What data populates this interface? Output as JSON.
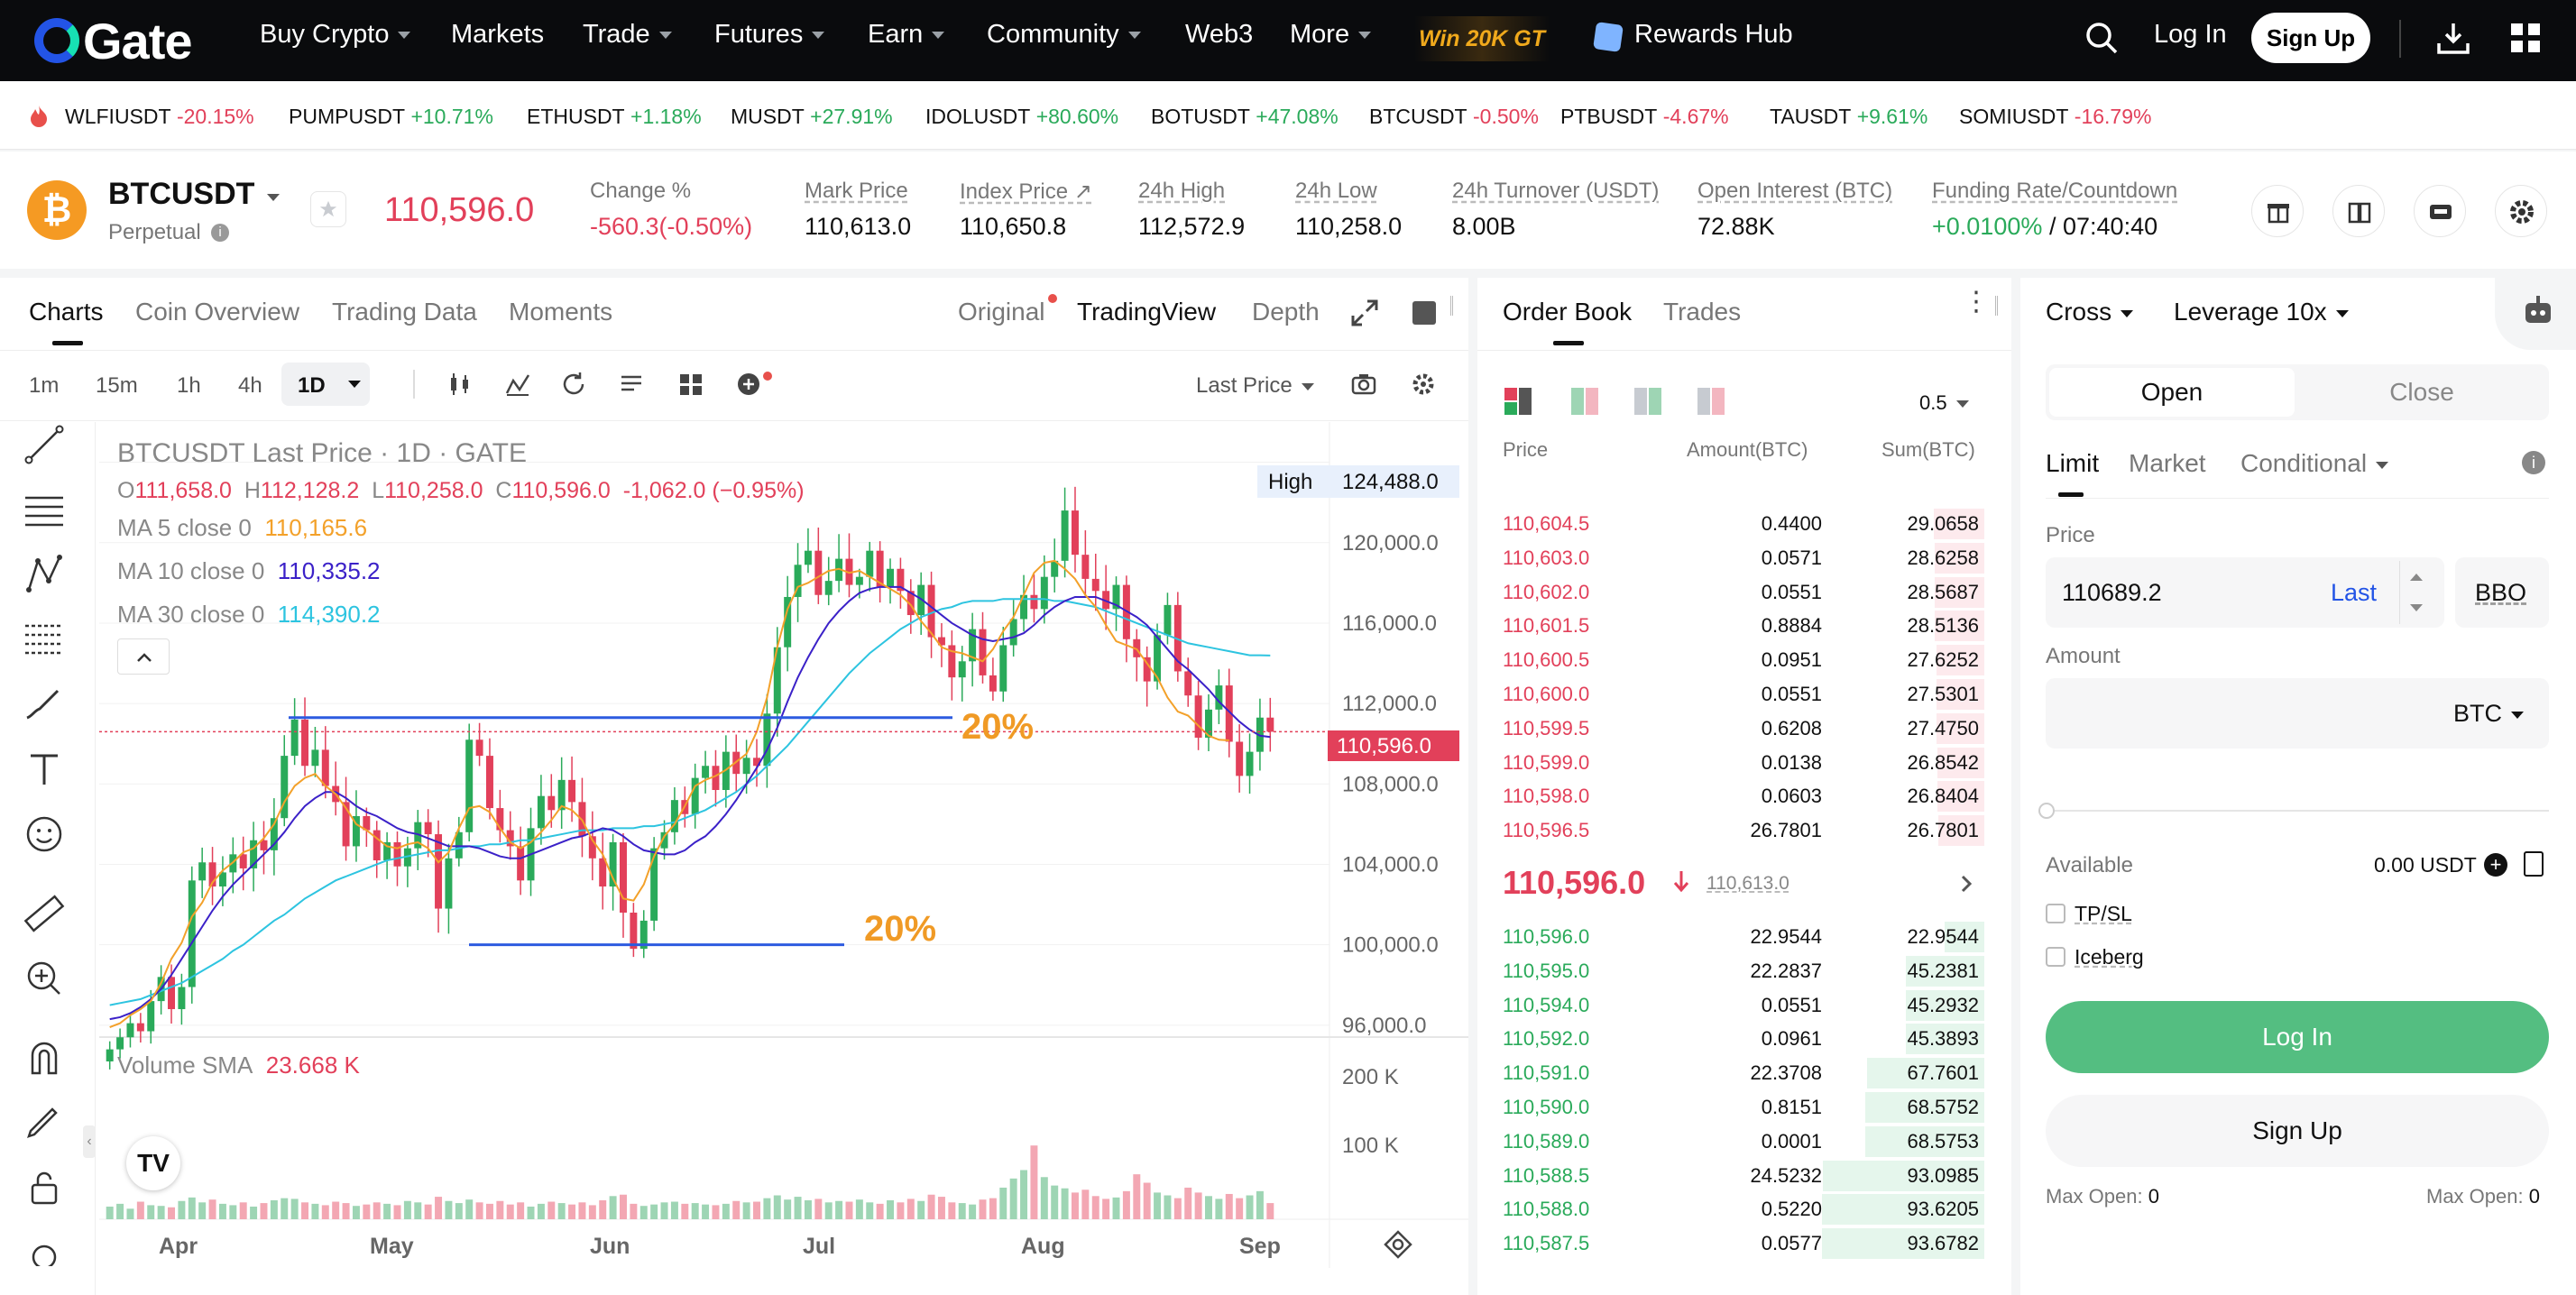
{
  "nav": {
    "logo": "Gate",
    "items": [
      {
        "label": "Buy Crypto",
        "dropdown": true
      },
      {
        "label": "Markets",
        "dropdown": false
      },
      {
        "label": "Trade",
        "dropdown": true
      },
      {
        "label": "Futures",
        "dropdown": true
      },
      {
        "label": "Earn",
        "dropdown": true
      },
      {
        "label": "Community",
        "dropdown": true
      },
      {
        "label": "Web3",
        "dropdown": false
      },
      {
        "label": "More",
        "dropdown": true
      }
    ],
    "promo_label": "Win 20K GT",
    "rewards_label": "Rewards Hub",
    "login_label": "Log In",
    "signup_label": "Sign Up",
    "icons": [
      "search-icon",
      "download-icon",
      "apps-grid-icon"
    ]
  },
  "ticker": [
    {
      "symbol": "WLFIUSDT",
      "change": "-20.15%",
      "dir": "neg"
    },
    {
      "symbol": "PUMPUSDT",
      "change": "+10.71%",
      "dir": "pos"
    },
    {
      "symbol": "ETHUSDT",
      "change": "+1.18%",
      "dir": "pos"
    },
    {
      "symbol": "MUSDT",
      "change": "+27.91%",
      "dir": "pos"
    },
    {
      "symbol": "IDOLUSDT",
      "change": "+80.60%",
      "dir": "pos"
    },
    {
      "symbol": "BOTUSDT",
      "change": "+47.08%",
      "dir": "pos"
    },
    {
      "symbol": "BTCUSDT",
      "change": "-0.50%",
      "dir": "neg"
    },
    {
      "symbol": "PTBUSDT",
      "change": "-4.67%",
      "dir": "neg"
    },
    {
      "symbol": "TAUSDT",
      "change": "+9.61%",
      "dir": "pos"
    },
    {
      "symbol": "SOMIUSDT",
      "change": "-16.79%",
      "dir": "neg"
    }
  ],
  "market": {
    "symbol": "BTCUSDT",
    "type": "Perpetual",
    "last_price": "110,596.0",
    "stats": [
      {
        "label": "Change %",
        "value": "-560.3(-0.50%)",
        "color": "#e2405a"
      },
      {
        "label": "Mark Price",
        "value": "110,613.0",
        "color": "#111111"
      },
      {
        "label": "Index Price ↗",
        "value": "110,650.8",
        "color": "#111111"
      },
      {
        "label": "24h High",
        "value": "112,572.9",
        "color": "#111111"
      },
      {
        "label": "24h Low",
        "value": "110,258.0",
        "color": "#111111"
      },
      {
        "label": "24h Turnover (USDT)",
        "value": "8.00B",
        "color": "#111111"
      },
      {
        "label": "Open Interest (BTC)",
        "value": "72.88K",
        "color": "#111111"
      }
    ],
    "funding_label": "Funding Rate/Countdown",
    "funding_rate": "+0.0100%",
    "countdown": "/ 07:40:40"
  },
  "chart_tabs": {
    "tabs": [
      "Charts",
      "Coin Overview",
      "Trading Data",
      "Moments"
    ],
    "views": [
      "Original",
      "TradingView",
      "Depth"
    ],
    "timeframes": [
      "1m",
      "15m",
      "1h",
      "4h",
      "1D"
    ],
    "price_source": "Last Price"
  },
  "chart_legend": {
    "title": "BTCUSDT Last Price · 1D · GATE",
    "ohlc": {
      "o": "111,658.0",
      "h": "112,128.2",
      "l": "110,258.0",
      "c": "110,596.0",
      "chg": "-1,062.0 (−0.95%)"
    },
    "ma5_label": "MA 5 close 0",
    "ma5_value": "110,165.6",
    "ma10_label": "MA 10 close 0",
    "ma10_value": "110,335.2",
    "ma30_label": "MA 30 close 0",
    "ma30_value": "114,390.2",
    "high_label": "High",
    "high_value": "124,488.0",
    "current_label": "110,596.0",
    "annot_top": "20%",
    "annot_bottom": "20%",
    "vol_label": "Volume SMA",
    "vol_value": "23.668 K"
  },
  "chart_data": {
    "type": "candlestick",
    "y_ticks": [
      "124,000.0",
      "120,000.0",
      "116,000.0",
      "112,000.0",
      "108,000.0",
      "104,000.0",
      "100,000.0",
      "96,000.0"
    ],
    "x_ticks": [
      "Apr",
      "May",
      "Jun",
      "Jul",
      "Aug",
      "Sep"
    ],
    "ylim": [
      95500,
      126000
    ],
    "vol_ticks": [
      "200 K",
      "100 K"
    ],
    "closes": [
      94800,
      95400,
      96100,
      95700,
      97200,
      98400,
      96800,
      97900,
      103200,
      104100,
      102900,
      103600,
      104500,
      103800,
      105200,
      104700,
      106300,
      109400,
      111200,
      108900,
      109700,
      107900,
      107100,
      104900,
      106400,
      105700,
      104200,
      105100,
      103900,
      104800,
      106100,
      105500,
      101800,
      104300,
      105600,
      110200,
      109400,
      106800,
      105700,
      104900,
      103200,
      105800,
      107400,
      106700,
      108200,
      107100,
      105400,
      104300,
      102900,
      105100,
      101600,
      99800,
      101200,
      104800,
      105600,
      107200,
      106500,
      108300,
      108900,
      107700,
      109600,
      108500,
      109300,
      108900,
      111500,
      114800,
      117300,
      118900,
      119600,
      117400,
      118100,
      119200,
      117900,
      118300,
      119600,
      117800,
      118700,
      117600,
      116400,
      117900,
      115300,
      114900,
      113300,
      114100,
      115700,
      113400,
      112600,
      114900,
      116200,
      117400,
      116700,
      118300,
      119100,
      121600,
      119400,
      118200,
      117600,
      116700,
      117900,
      115200,
      114300,
      113100,
      115400,
      116900,
      113600,
      112400,
      110300,
      111700,
      112900,
      110100,
      108400,
      109600,
      111300,
      110596
    ],
    "ma5": [
      95900,
      96100,
      96500,
      96800,
      97200,
      98100,
      99300,
      100100,
      101400,
      102100,
      103100,
      103700,
      104100,
      104600,
      104800,
      105300,
      106000,
      107100,
      107900,
      108300,
      108500,
      107900,
      107500,
      106800,
      106000,
      105700,
      105300,
      104900,
      104800,
      105000,
      105100,
      104800,
      104100,
      104600,
      105800,
      106800,
      106900,
      106600,
      105800,
      105100,
      104800,
      105100,
      105600,
      106200,
      106900,
      106700,
      106200,
      105200,
      104500,
      103300,
      102300,
      102200,
      103000,
      104400,
      105400,
      106000,
      106900,
      107900,
      108200,
      108400,
      108700,
      109100,
      109500,
      110600,
      112300,
      114800,
      116700,
      117800,
      118000,
      118300,
      118600,
      118700,
      118500,
      118600,
      118300,
      118000,
      117700,
      117400,
      116900,
      116100,
      115500,
      114800,
      114600,
      114500,
      114300,
      114100,
      114700,
      115600,
      116300,
      117400,
      118500,
      119000,
      119100,
      118700,
      118200,
      117400,
      116800,
      115900,
      115100,
      114900,
      114700,
      114000,
      113300,
      112300,
      111600,
      111400,
      110900,
      110400,
      110200,
      110165
    ],
    "ma10": [
      96300,
      96400,
      96600,
      96900,
      97300,
      97800,
      98500,
      99300,
      100100,
      100900,
      101700,
      102400,
      103000,
      103500,
      104000,
      104500,
      105000,
      105600,
      106300,
      106900,
      107300,
      107600,
      107600,
      107300,
      106900,
      106600,
      106400,
      106100,
      105800,
      105600,
      105500,
      105300,
      105100,
      104900,
      104900,
      104900,
      104800,
      104600,
      104400,
      104300,
      104300,
      104500,
      104700,
      104900,
      105100,
      105300,
      105400,
      105600,
      105800,
      105700,
      105400,
      105000,
      104700,
      104600,
      104500,
      104500,
      104700,
      105100,
      105400,
      105900,
      106500,
      107200,
      108000,
      108800,
      109700,
      110800,
      112100,
      113300,
      114300,
      115200,
      116000,
      116600,
      117100,
      117500,
      117700,
      117800,
      117800,
      117800,
      117500,
      117200,
      116800,
      116400,
      116000,
      115700,
      115400,
      115200,
      115100,
      115200,
      115300,
      115500,
      115900,
      116400,
      116800,
      117100,
      117300,
      117300,
      117300,
      117100,
      116900,
      116600,
      116300,
      115900,
      115300,
      114700,
      114100,
      113700,
      113200,
      112700,
      112100,
      111600,
      111100,
      110700,
      110400,
      110335
    ],
    "ma30": [
      97000,
      97100,
      97200,
      97300,
      97500,
      97700,
      97900,
      98100,
      98400,
      98700,
      99000,
      99300,
      99700,
      100000,
      100400,
      100800,
      101200,
      101500,
      101900,
      102300,
      102600,
      102900,
      103200,
      103400,
      103600,
      103800,
      104000,
      104200,
      104300,
      104400,
      104500,
      104600,
      104700,
      104700,
      104800,
      104900,
      104900,
      105000,
      105000,
      105100,
      105200,
      105200,
      105300,
      105400,
      105500,
      105600,
      105700,
      105700,
      105700,
      105800,
      105800,
      105800,
      105900,
      105900,
      106000,
      106100,
      106300,
      106500,
      106700,
      107000,
      107300,
      107600,
      108000,
      108400,
      108900,
      109400,
      109900,
      110500,
      111100,
      111700,
      112300,
      112900,
      113500,
      114000,
      114500,
      114900,
      115300,
      115700,
      116000,
      116300,
      116500,
      116700,
      116800,
      117000,
      117100,
      117100,
      117100,
      117200,
      117200,
      117200,
      117200,
      117200,
      117100,
      117100,
      117000,
      116900,
      116800,
      116600,
      116400,
      116200,
      116000,
      115800,
      115600,
      115400,
      115200,
      115000,
      114900,
      114800,
      114700,
      114600,
      114500,
      114400,
      114400,
      114390
    ],
    "volumes": [
      18,
      22,
      15,
      25,
      20,
      19,
      17,
      26,
      31,
      24,
      28,
      22,
      20,
      24,
      18,
      23,
      27,
      30,
      29,
      24,
      22,
      20,
      25,
      23,
      19,
      21,
      24,
      22,
      20,
      26,
      24,
      21,
      32,
      26,
      23,
      28,
      24,
      22,
      26,
      21,
      24,
      18,
      22,
      25,
      23,
      21,
      24,
      20,
      27,
      33,
      35,
      22,
      19,
      21,
      24,
      25,
      22,
      23,
      21,
      20,
      22,
      26,
      24,
      25,
      30,
      34,
      28,
      32,
      27,
      29,
      24,
      26,
      25,
      28,
      24,
      22,
      27,
      24,
      29,
      26,
      35,
      32,
      24,
      23,
      21,
      28,
      30,
      45,
      58,
      70,
      105,
      60,
      48,
      44,
      38,
      42,
      33,
      29,
      31,
      40,
      64,
      52,
      38,
      34,
      30,
      45,
      38,
      33,
      29,
      36,
      30,
      34,
      40,
      23
    ],
    "annotations": [
      {
        "type": "horizontal_line",
        "price": 111300,
        "label": "20%"
      },
      {
        "type": "horizontal_line",
        "price": 100000,
        "label": "20%"
      }
    ]
  },
  "orderbook": {
    "tabs": [
      "Order Book",
      "Trades"
    ],
    "precision": "0.5",
    "cols": [
      "Price",
      "Amount(BTC)",
      "Sum(BTC)"
    ],
    "asks": [
      {
        "p": "110,604.5",
        "a": "0.4400",
        "s": "29.0658",
        "d": 0.31
      },
      {
        "p": "110,603.0",
        "a": "0.0571",
        "s": "28.6258",
        "d": 0.306
      },
      {
        "p": "110,602.0",
        "a": "0.0551",
        "s": "28.5687",
        "d": 0.305
      },
      {
        "p": "110,601.5",
        "a": "0.8884",
        "s": "28.5136",
        "d": 0.305
      },
      {
        "p": "110,600.5",
        "a": "0.0951",
        "s": "27.6252",
        "d": 0.295
      },
      {
        "p": "110,600.0",
        "a": "0.0551",
        "s": "27.5301",
        "d": 0.294
      },
      {
        "p": "110,599.5",
        "a": "0.6208",
        "s": "27.4750",
        "d": 0.293
      },
      {
        "p": "110,599.0",
        "a": "0.0138",
        "s": "26.8542",
        "d": 0.287
      },
      {
        "p": "110,598.0",
        "a": "0.0603",
        "s": "26.8404",
        "d": 0.287
      },
      {
        "p": "110,596.5",
        "a": "26.7801",
        "s": "26.7801",
        "d": 0.286
      }
    ],
    "mid_price": "110,596.0",
    "mark": "110,613.0",
    "bids": [
      {
        "p": "110,596.0",
        "a": "22.9544",
        "s": "22.9544",
        "d": 0.245
      },
      {
        "p": "110,595.0",
        "a": "22.2837",
        "s": "45.2381",
        "d": 0.483
      },
      {
        "p": "110,594.0",
        "a": "0.0551",
        "s": "45.2932",
        "d": 0.484
      },
      {
        "p": "110,592.0",
        "a": "0.0961",
        "s": "45.3893",
        "d": 0.485
      },
      {
        "p": "110,591.0",
        "a": "22.3708",
        "s": "67.7601",
        "d": 0.724
      },
      {
        "p": "110,590.0",
        "a": "0.8151",
        "s": "68.5752",
        "d": 0.733
      },
      {
        "p": "110,589.0",
        "a": "0.0001",
        "s": "68.5753",
        "d": 0.733
      },
      {
        "p": "110,588.5",
        "a": "24.5232",
        "s": "93.0985",
        "d": 0.995
      },
      {
        "p": "110,588.0",
        "a": "0.5220",
        "s": "93.6205",
        "d": 1.0
      },
      {
        "p": "110,587.5",
        "a": "0.0577",
        "s": "93.6782",
        "d": 1.0
      }
    ]
  },
  "trade": {
    "margin_mode": "Cross",
    "leverage": "Leverage 10x",
    "open_label": "Open",
    "close_label": "Close",
    "order_types": [
      "Limit",
      "Market",
      "Conditional"
    ],
    "price_label": "Price",
    "price_value": "110689.2",
    "last_label": "Last",
    "bbo_label": "BBO",
    "amount_label": "Amount",
    "amount_unit": "BTC",
    "available_label": "Available",
    "available_value": "0.00 USDT",
    "tpsl_label": "TP/SL",
    "iceberg_label": "Iceberg",
    "login_btn": "Log In",
    "signup_btn": "Sign Up",
    "max_open_left": "Max Open:",
    "max_open_left_val": "0",
    "max_open_right": "Max Open:",
    "max_open_right_val": "0"
  }
}
